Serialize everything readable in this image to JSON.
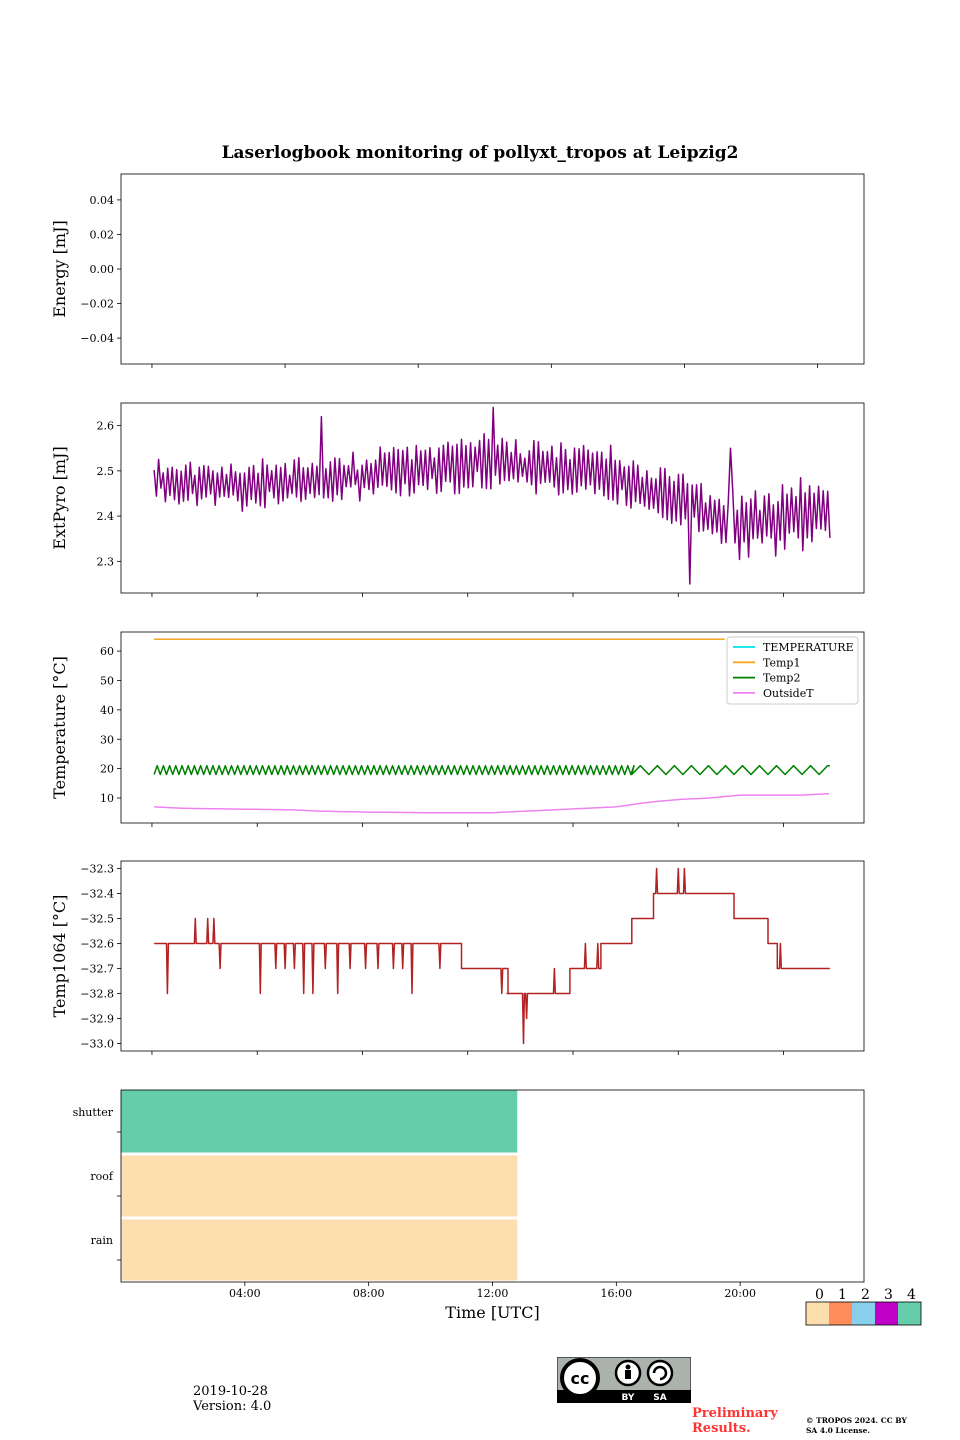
{
  "title": "Laserlogbook monitoring of pollyxt_tropos at Leipzig2",
  "footer": {
    "date": "2019-10-28",
    "version": "Version: 4.0",
    "preliminary": "Preliminary Results.",
    "copyright": "© TROPOS 2024. CC BY SA 4.0 License.",
    "license_badge": {
      "icon": "cc-by-sa-icon",
      "labels": [
        "BY",
        "SA"
      ]
    }
  },
  "colors": {
    "energy": "#1f77b4",
    "extpyro": "#800080",
    "temperature": "#00e5ee",
    "temp1": "#f5a623",
    "temp2": "#008000",
    "outsideT": "#ee82ee",
    "temp1064": "#b22222",
    "status_scale": [
      "#fddfaf",
      "#ff8c5a",
      "#87cfeb",
      "#c000c8",
      "#66cdaa"
    ]
  },
  "chart_data": [
    {
      "id": "energy",
      "type": "line",
      "ylabel": "Energy [mJ]",
      "ylim": [
        -0.055,
        0.055
      ],
      "yticks": [
        -0.04,
        -0.02,
        0.0,
        0.02,
        0.04
      ],
      "ytick_labels": [
        "−0.04",
        "−0.02",
        "0.00",
        "0.02",
        "0.04"
      ],
      "xlim": [
        0,
        24
      ],
      "xticks": [
        1,
        5.3,
        9.6,
        13.9,
        18.2,
        22.5
      ],
      "series": []
    },
    {
      "id": "extpyro",
      "type": "line",
      "ylabel": "ExtPyro [mJ]",
      "ylim": [
        2.23,
        2.65
      ],
      "yticks": [
        2.3,
        2.4,
        2.5,
        2.6
      ],
      "ytick_labels": [
        "2.3",
        "2.4",
        "2.5",
        "2.6"
      ],
      "xlim": [
        0,
        24
      ],
      "xticks": [
        1,
        4.4,
        7.8,
        11.2,
        14.6,
        18.0,
        21.4
      ],
      "series": [
        {
          "name": "ExtPyro",
          "generator": "oscillating",
          "x_start": 1.07,
          "x_end": 22.9,
          "n": 300,
          "seed": 11,
          "knots": [
            [
              1.0,
              2.48
            ],
            [
              4.0,
              2.47
            ],
            [
              8.0,
              2.49
            ],
            [
              12.0,
              2.52
            ],
            [
              16.0,
              2.49
            ],
            [
              18.0,
              2.44
            ],
            [
              20.0,
              2.38
            ],
            [
              23.0,
              2.41
            ]
          ],
          "amplitude_knots": [
            [
              1.0,
              0.05
            ],
            [
              12.0,
              0.06
            ],
            [
              17.0,
              0.06
            ],
            [
              23.0,
              0.08
            ]
          ],
          "spikes": [
            [
              18.4,
              2.25
            ],
            [
              12.0,
              2.64
            ],
            [
              6.5,
              2.62
            ],
            [
              19.7,
              2.55
            ]
          ]
        }
      ]
    },
    {
      "id": "temperature",
      "type": "line",
      "ylabel": "Temperature [°C]",
      "ylim": [
        1.5,
        66.5
      ],
      "yticks": [
        10,
        20,
        30,
        40,
        50,
        60
      ],
      "ytick_labels": [
        "10",
        "20",
        "30",
        "40",
        "50",
        "60"
      ],
      "xlim": [
        0,
        24
      ],
      "xticks": [
        1,
        4.4,
        7.8,
        11.2,
        14.6,
        18.0,
        21.4
      ],
      "legend": {
        "placement": "top-right",
        "entries": [
          "TEMPERATURE",
          "Temp1",
          "Temp2",
          "OutsideT"
        ]
      },
      "series": [
        {
          "name": "TEMPERATURE",
          "generator": "flat",
          "points": []
        },
        {
          "name": "Temp1",
          "generator": "flat",
          "points": [
            [
              1.07,
              64
            ],
            [
              19.5,
              64
            ]
          ]
        },
        {
          "name": "Temp2",
          "generator": "sawtooth",
          "x_start": 1.07,
          "x_end": 22.9,
          "segments": [
            [
              1.07,
              16.5,
              0.2
            ],
            [
              16.5,
              22.9,
              0.55
            ]
          ],
          "low": 18,
          "high": 21
        },
        {
          "name": "OutsideT",
          "generator": "smooth",
          "knots": [
            [
              1.07,
              7
            ],
            [
              2.0,
              6.5
            ],
            [
              4.0,
              6.2
            ],
            [
              5.5,
              6.0
            ],
            [
              6.5,
              5.5
            ],
            [
              8.0,
              5.2
            ],
            [
              10.0,
              5.0
            ],
            [
              12.0,
              5.0
            ],
            [
              14.0,
              6.0
            ],
            [
              16.0,
              7.0
            ],
            [
              17.0,
              8.5
            ],
            [
              18.0,
              9.5
            ],
            [
              19.0,
              10.0
            ],
            [
              20.0,
              11.0
            ],
            [
              21.0,
              11.0
            ],
            [
              22.0,
              11.0
            ],
            [
              22.9,
              11.5
            ]
          ]
        }
      ]
    },
    {
      "id": "temp1064",
      "type": "line",
      "ylabel": "Temp1064 [°C]",
      "ylim": [
        -33.03,
        -32.27
      ],
      "yticks": [
        -33.0,
        -32.9,
        -32.8,
        -32.7,
        -32.6,
        -32.5,
        -32.4,
        -32.3
      ],
      "ytick_labels": [
        "−33.0",
        "−32.9",
        "−32.8",
        "−32.7",
        "−32.6",
        "−32.5",
        "−32.4",
        "−32.3"
      ],
      "xlim": [
        0,
        24
      ],
      "xticks": [
        1,
        4.4,
        7.8,
        11.2,
        14.6,
        18.0,
        21.4
      ],
      "series": [
        {
          "name": "Temp1064",
          "generator": "step",
          "steps": [
            [
              1.07,
              -32.6
            ],
            [
              11.0,
              -32.7
            ],
            [
              12.5,
              -32.8
            ],
            [
              14.5,
              -32.7
            ],
            [
              15.5,
              -32.6
            ],
            [
              16.5,
              -32.5
            ],
            [
              17.2,
              -32.4
            ],
            [
              19.8,
              -32.5
            ],
            [
              20.9,
              -32.6
            ],
            [
              21.2,
              -32.7
            ],
            [
              22.9,
              -32.7
            ]
          ],
          "dips": [
            [
              1.5,
              -32.8
            ],
            [
              2.4,
              -32.5
            ],
            [
              2.8,
              -32.5
            ],
            [
              3.0,
              -32.5
            ],
            [
              3.2,
              -32.7
            ],
            [
              4.5,
              -32.8
            ],
            [
              5.0,
              -32.7
            ],
            [
              5.3,
              -32.7
            ],
            [
              5.6,
              -32.7
            ],
            [
              5.9,
              -32.8
            ],
            [
              6.2,
              -32.8
            ],
            [
              6.6,
              -32.7
            ],
            [
              7.0,
              -32.8
            ],
            [
              7.4,
              -32.7
            ],
            [
              7.9,
              -32.7
            ],
            [
              8.3,
              -32.7
            ],
            [
              8.8,
              -32.7
            ],
            [
              9.1,
              -32.7
            ],
            [
              9.4,
              -32.8
            ],
            [
              10.3,
              -32.7
            ],
            [
              11.5,
              -32.7
            ],
            [
              12.3,
              -32.8
            ],
            [
              12.5,
              -32.8
            ],
            [
              13.0,
              -33.0
            ],
            [
              13.1,
              -32.9
            ],
            [
              14.0,
              -32.7
            ],
            [
              14.4,
              -32.8
            ],
            [
              15.0,
              -32.6
            ],
            [
              15.4,
              -32.6
            ],
            [
              17.3,
              -32.3
            ],
            [
              18.0,
              -32.3
            ],
            [
              18.2,
              -32.3
            ],
            [
              21.3,
              -32.6
            ]
          ]
        }
      ]
    },
    {
      "id": "status",
      "type": "heatmap",
      "xlabel": "Time [UTC]",
      "xlim": [
        0,
        24
      ],
      "xticks": [
        4,
        8,
        12,
        16,
        20
      ],
      "xtick_labels": [
        "04:00",
        "08:00",
        "12:00",
        "16:00",
        "20:00"
      ],
      "rows": [
        "shutter",
        "roof",
        "rain"
      ],
      "cells": [
        {
          "row": "shutter",
          "x_start": 0,
          "x_end": 12.8,
          "value": 4
        },
        {
          "row": "roof",
          "x_start": 0,
          "x_end": 12.8,
          "value": 0
        },
        {
          "row": "rain",
          "x_start": 0,
          "x_end": 12.8,
          "value": 0
        }
      ],
      "colorbar": {
        "labels": [
          "0",
          "1",
          "2",
          "3",
          "4"
        ]
      }
    }
  ]
}
